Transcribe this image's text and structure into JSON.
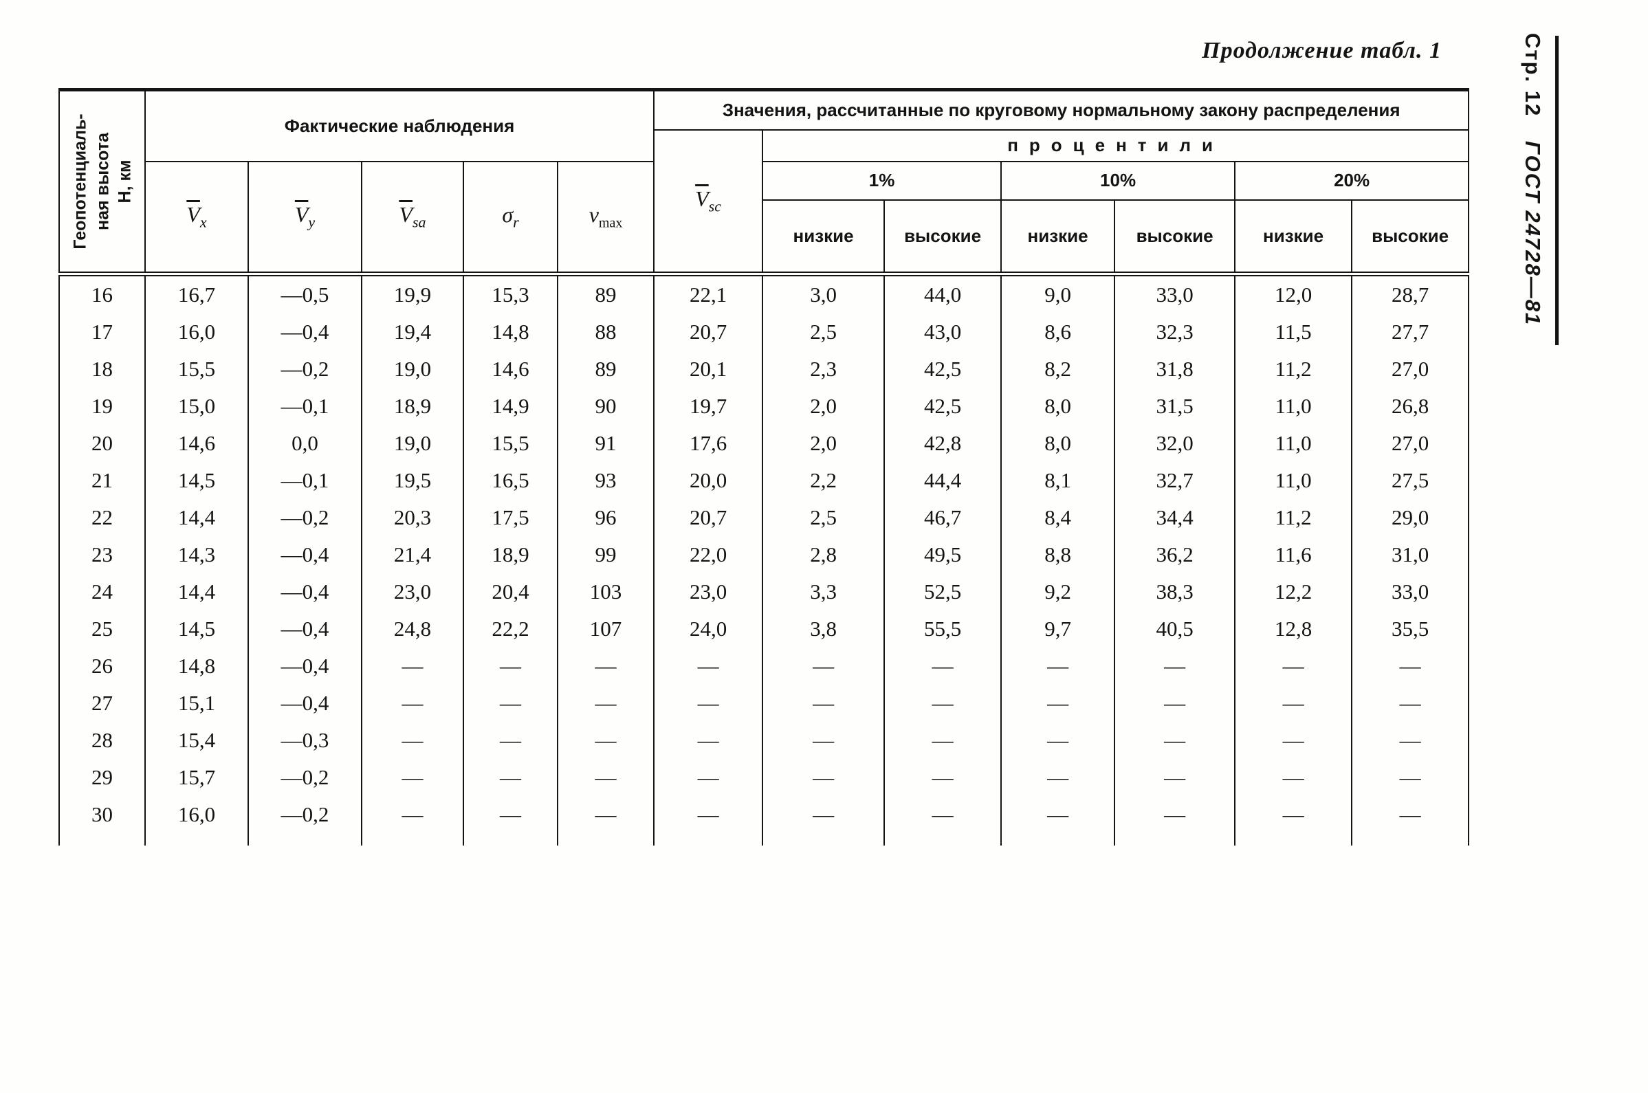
{
  "page": {
    "title": "Продолжение табл. 1",
    "side_label_page": "Стр. 12",
    "side_label_gost": "ГОСТ 24728—81"
  },
  "table": {
    "geo_header": "Геопотенциаль-\nная высота\nН, км",
    "left_group": "Фактические наблюдения",
    "right_group": "Значения, рассчитанные по круговому нормальному закону распределения",
    "percentiles": "процентили",
    "symbols": {
      "vx": {
        "base": "V",
        "sub": "x"
      },
      "vy": {
        "base": "V",
        "sub": "y"
      },
      "vsa": {
        "base": "V",
        "sub": "sa"
      },
      "sigma": {
        "base": "σ",
        "sub": "r"
      },
      "vmax": {
        "base": "v",
        "sub": "max"
      },
      "vsc": {
        "base": "V",
        "sub": "sc"
      }
    },
    "percentile_groups": [
      {
        "label": "1%",
        "low": "низкие",
        "high": "высокие"
      },
      {
        "label": "10%",
        "low": "низкие",
        "high": "высокие"
      },
      {
        "label": "20%",
        "low": "низкие",
        "high": "высокие"
      }
    ],
    "rows": [
      {
        "h": "16",
        "values": [
          "16,7",
          "—0,5",
          "19,9",
          "15,3",
          "89",
          "22,1",
          "3,0",
          "44,0",
          "9,0",
          "33,0",
          "12,0",
          "28,7"
        ]
      },
      {
        "h": "17",
        "values": [
          "16,0",
          "—0,4",
          "19,4",
          "14,8",
          "88",
          "20,7",
          "2,5",
          "43,0",
          "8,6",
          "32,3",
          "11,5",
          "27,7"
        ]
      },
      {
        "h": "18",
        "values": [
          "15,5",
          "—0,2",
          "19,0",
          "14,6",
          "89",
          "20,1",
          "2,3",
          "42,5",
          "8,2",
          "31,8",
          "11,2",
          "27,0"
        ]
      },
      {
        "h": "19",
        "values": [
          "15,0",
          "—0,1",
          "18,9",
          "14,9",
          "90",
          "19,7",
          "2,0",
          "42,5",
          "8,0",
          "31,5",
          "11,0",
          "26,8"
        ]
      },
      {
        "h": "20",
        "values": [
          "14,6",
          "0,0",
          "19,0",
          "15,5",
          "91",
          "17,6",
          "2,0",
          "42,8",
          "8,0",
          "32,0",
          "11,0",
          "27,0"
        ]
      },
      {
        "h": "21",
        "values": [
          "14,5",
          "—0,1",
          "19,5",
          "16,5",
          "93",
          "20,0",
          "2,2",
          "44,4",
          "8,1",
          "32,7",
          "11,0",
          "27,5"
        ]
      },
      {
        "h": "22",
        "values": [
          "14,4",
          "—0,2",
          "20,3",
          "17,5",
          "96",
          "20,7",
          "2,5",
          "46,7",
          "8,4",
          "34,4",
          "11,2",
          "29,0"
        ]
      },
      {
        "h": "23",
        "values": [
          "14,3",
          "—0,4",
          "21,4",
          "18,9",
          "99",
          "22,0",
          "2,8",
          "49,5",
          "8,8",
          "36,2",
          "11,6",
          "31,0"
        ]
      },
      {
        "h": "24",
        "values": [
          "14,4",
          "—0,4",
          "23,0",
          "20,4",
          "103",
          "23,0",
          "3,3",
          "52,5",
          "9,2",
          "38,3",
          "12,2",
          "33,0"
        ]
      },
      {
        "h": "25",
        "values": [
          "14,5",
          "—0,4",
          "24,8",
          "22,2",
          "107",
          "24,0",
          "3,8",
          "55,5",
          "9,7",
          "40,5",
          "12,8",
          "35,5"
        ]
      },
      {
        "h": "26",
        "values": [
          "14,8",
          "—0,4",
          "—",
          "—",
          "—",
          "—",
          "—",
          "—",
          "—",
          "—",
          "—",
          "—"
        ]
      },
      {
        "h": "27",
        "values": [
          "15,1",
          "—0,4",
          "—",
          "—",
          "—",
          "—",
          "—",
          "—",
          "—",
          "—",
          "—",
          "—"
        ]
      },
      {
        "h": "28",
        "values": [
          "15,4",
          "—0,3",
          "—",
          "—",
          "—",
          "—",
          "—",
          "—",
          "—",
          "—",
          "—",
          "—"
        ]
      },
      {
        "h": "29",
        "values": [
          "15,7",
          "—0,2",
          "—",
          "—",
          "—",
          "—",
          "—",
          "—",
          "—",
          "—",
          "—",
          "—"
        ]
      },
      {
        "h": "30",
        "values": [
          "16,0",
          "—0,2",
          "—",
          "—",
          "—",
          "—",
          "—",
          "—",
          "—",
          "—",
          "—",
          "—"
        ]
      }
    ]
  }
}
